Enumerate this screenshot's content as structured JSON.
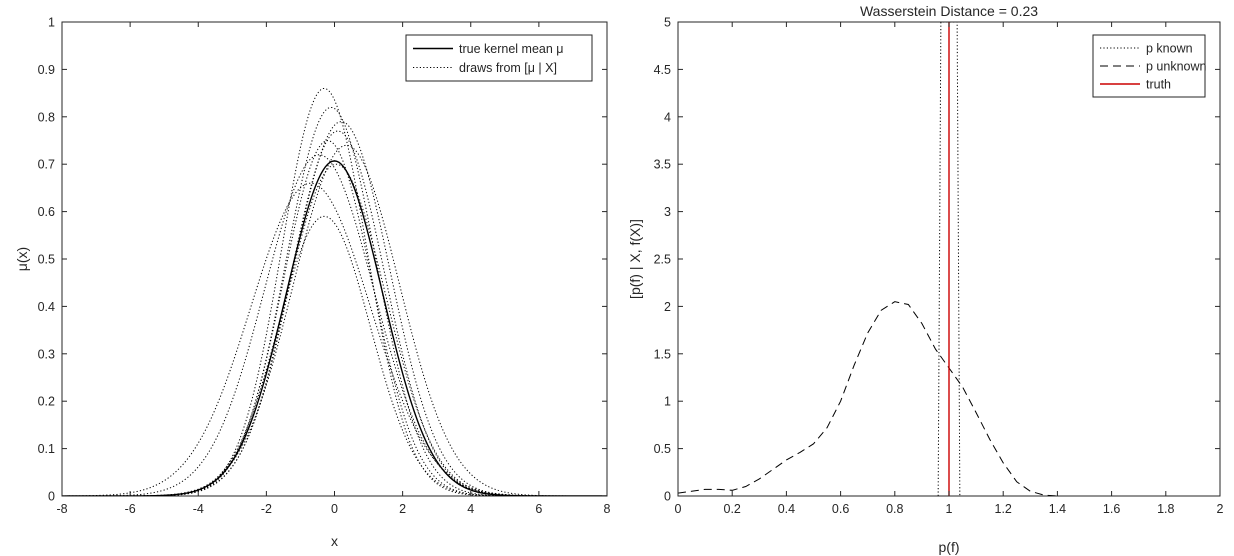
{
  "chart_data": [
    {
      "type": "line",
      "title": "",
      "xlabel": "x",
      "ylabel": "μ(x)",
      "xlim": [
        -8,
        8
      ],
      "ylim": [
        0,
        1
      ],
      "xticks": [
        "-8",
        "-6",
        "-4",
        "-2",
        "0",
        "2",
        "4",
        "6",
        "8"
      ],
      "yticks": [
        "0",
        "0.1",
        "0.2",
        "0.3",
        "0.4",
        "0.5",
        "0.6",
        "0.7",
        "0.8",
        "0.9",
        "1"
      ],
      "grid": false,
      "legend_position": "top-right",
      "series": [
        {
          "name": "true kernel mean μ",
          "style": "solid",
          "color": "#000000",
          "peak": 0.707,
          "center": 0.0,
          "width": 1.41
        },
        {
          "name": "draws from [μ | X]",
          "style": "dotted",
          "color": "#000000",
          "peak": 0.86,
          "center": -0.3,
          "width": 1.25
        },
        {
          "name": "draws from [μ | X]",
          "style": "dotted",
          "color": "#000000",
          "peak": 0.82,
          "center": -0.1,
          "width": 1.32,
          "in_legend": false
        },
        {
          "name": "draws from [μ | X]",
          "style": "dotted",
          "color": "#000000",
          "peak": 0.79,
          "center": 0.2,
          "width": 1.42,
          "in_legend": false
        },
        {
          "name": "draws from [μ | X]",
          "style": "dotted",
          "color": "#000000",
          "peak": 0.77,
          "center": 0.1,
          "width": 1.38,
          "in_legend": false
        },
        {
          "name": "draws from [μ | X]",
          "style": "dotted",
          "color": "#000000",
          "peak": 0.75,
          "center": -0.2,
          "width": 1.3,
          "in_legend": false
        },
        {
          "name": "draws from [μ | X]",
          "style": "dotted",
          "color": "#000000",
          "peak": 0.74,
          "center": 0.35,
          "width": 1.55,
          "in_legend": false
        },
        {
          "name": "draws from [μ | X]",
          "style": "dotted",
          "color": "#000000",
          "peak": 0.72,
          "center": -0.45,
          "width": 1.6,
          "in_legend": false
        },
        {
          "name": "draws from [μ | X]",
          "style": "dotted",
          "color": "#000000",
          "peak": 0.7,
          "center": 0.05,
          "width": 1.45,
          "in_legend": false
        },
        {
          "name": "draws from [μ | X]",
          "style": "dotted",
          "color": "#000000",
          "peak": 0.66,
          "center": -0.7,
          "width": 1.75,
          "in_legend": false
        },
        {
          "name": "draws from [μ | X]",
          "style": "dotted",
          "color": "#000000",
          "peak": 0.59,
          "center": -0.3,
          "width": 1.35,
          "in_legend": false
        }
      ]
    },
    {
      "type": "line",
      "title": "Wasserstein Distance = 0.23",
      "xlabel": "p(f)",
      "ylabel": "[p(f) | X, f(X)]",
      "xlim": [
        0,
        2
      ],
      "ylim": [
        0,
        5
      ],
      "xticks": [
        "0",
        "0.2",
        "0.4",
        "0.6",
        "0.8",
        "1",
        "1.2",
        "1.4",
        "1.6",
        "1.8",
        "2"
      ],
      "yticks": [
        "0",
        "0.5",
        "1",
        "1.5",
        "2",
        "2.5",
        "3",
        "3.5",
        "4",
        "4.5",
        "5"
      ],
      "grid": false,
      "legend_position": "top-right",
      "series": [
        {
          "name": "p known",
          "style": "dotted",
          "color": "#000000",
          "x": [
            0.96,
            0.962,
            0.964,
            0.966,
            0.968,
            0.97,
            1.03,
            1.032,
            1.034,
            1.036,
            1.038,
            1.04
          ],
          "y": [
            0,
            1,
            2,
            3,
            4,
            5,
            5,
            4,
            3,
            2,
            1,
            0
          ]
        },
        {
          "name": "p unknown",
          "style": "dashed",
          "color": "#000000",
          "x": [
            0.0,
            0.05,
            0.1,
            0.15,
            0.2,
            0.25,
            0.3,
            0.35,
            0.4,
            0.45,
            0.5,
            0.55,
            0.6,
            0.65,
            0.7,
            0.75,
            0.8,
            0.85,
            0.9,
            0.95,
            1.0,
            1.05,
            1.1,
            1.15,
            1.2,
            1.25,
            1.3,
            1.35,
            1.4
          ],
          "y": [
            0.03,
            0.05,
            0.07,
            0.07,
            0.06,
            0.1,
            0.18,
            0.28,
            0.38,
            0.46,
            0.55,
            0.72,
            1.0,
            1.38,
            1.72,
            1.96,
            2.05,
            2.02,
            1.82,
            1.55,
            1.35,
            1.15,
            0.88,
            0.6,
            0.35,
            0.15,
            0.05,
            0.01,
            0.0
          ]
        },
        {
          "name": "truth",
          "style": "solid",
          "color": "#cc0000",
          "x": [
            1.0,
            1.0
          ],
          "y": [
            0,
            5
          ]
        }
      ]
    }
  ]
}
